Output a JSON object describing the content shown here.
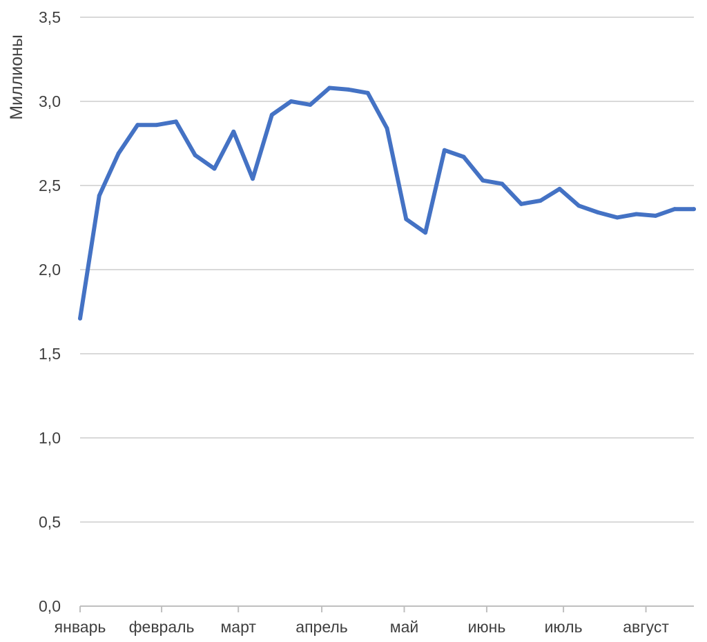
{
  "chart_data": {
    "type": "line",
    "ylabel": "Миллионы",
    "xlabel": "",
    "ylim": [
      0,
      3.5
    ],
    "yticks": [
      0,
      0.5,
      1,
      1.5,
      2,
      2.5,
      3,
      3.5
    ],
    "ytick_labels": [
      "0,0",
      "0,5",
      "1,0",
      "1,5",
      "2,0",
      "2,5",
      "3,0",
      "3,5"
    ],
    "grid": true,
    "legend": "none",
    "months": [
      {
        "label": "январь",
        "index": 0
      },
      {
        "label": "февраль",
        "index": 4.25
      },
      {
        "label": "март",
        "index": 8.25
      },
      {
        "label": "апрель",
        "index": 12.6
      },
      {
        "label": "май",
        "index": 16.9
      },
      {
        "label": "июнь",
        "index": 21.2
      },
      {
        "label": "июль",
        "index": 25.2
      },
      {
        "label": "август",
        "index": 29.5
      }
    ],
    "series": [
      {
        "color": "#4472C4",
        "values": [
          1.71,
          2.44,
          2.69,
          2.86,
          2.86,
          2.88,
          2.68,
          2.6,
          2.82,
          2.54,
          2.92,
          3.0,
          2.98,
          3.08,
          3.07,
          3.05,
          2.84,
          2.3,
          2.22,
          2.71,
          2.67,
          2.53,
          2.51,
          2.39,
          2.41,
          2.48,
          2.38,
          2.34,
          2.31,
          2.33,
          2.32,
          2.36,
          2.36
        ]
      }
    ]
  }
}
